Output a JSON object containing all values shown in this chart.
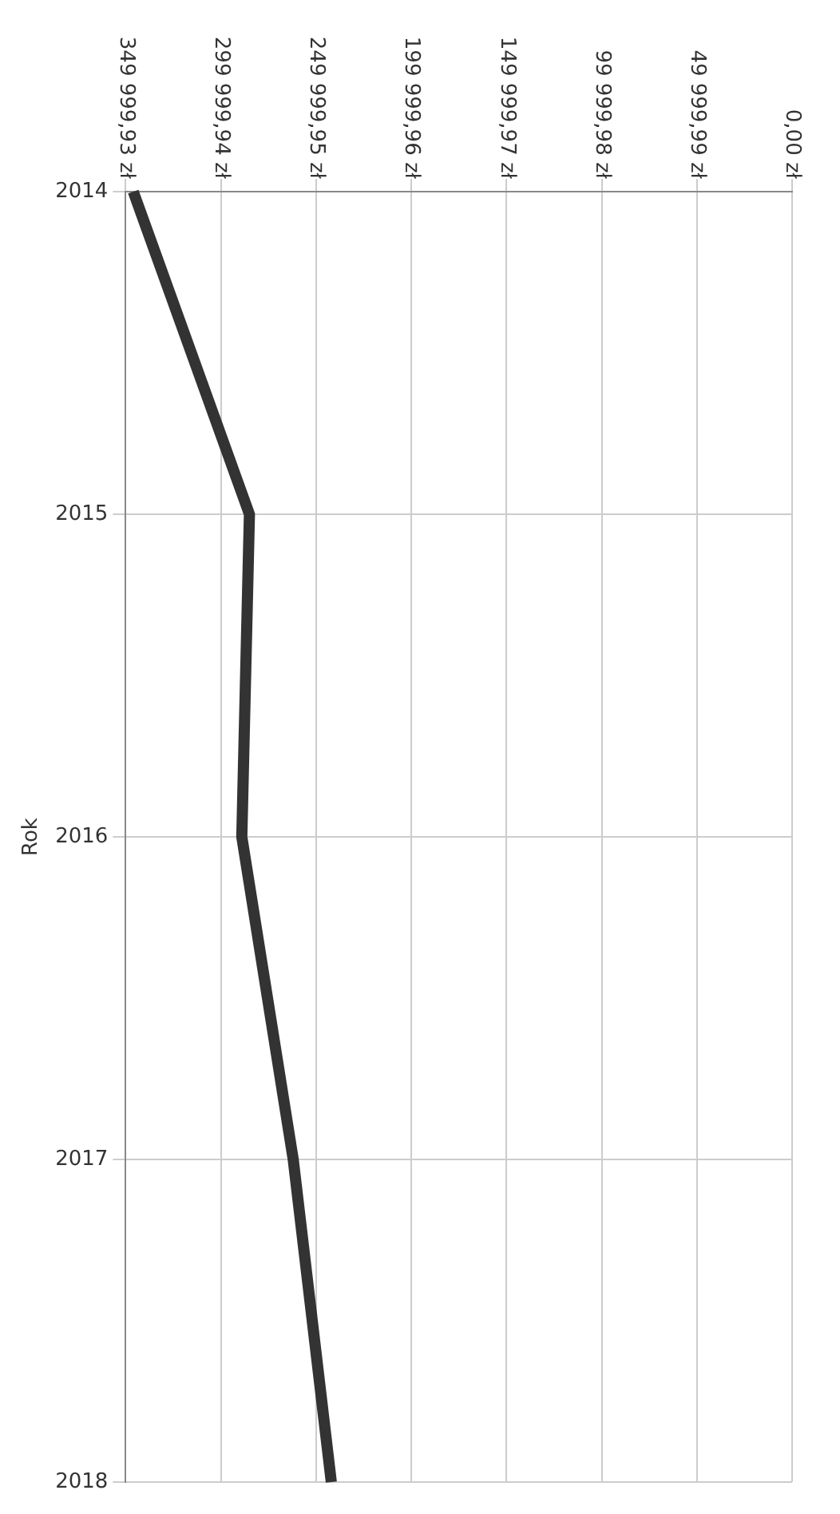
{
  "chart_data": {
    "type": "line",
    "orientation": "horizontal",
    "ylabel": "Rok",
    "categories": [
      "2014",
      "2015",
      "2016",
      "2017",
      "2018"
    ],
    "series": [
      {
        "color": "#333333",
        "values": [
          346000,
          285000,
          289000,
          262000,
          242000
        ]
      }
    ],
    "xlim": [
      349999.93,
      0
    ],
    "xticks": [
      {
        "value": 0,
        "label": "0,00 zł"
      },
      {
        "value": 49999.99,
        "label": "49 999,99 zł"
      },
      {
        "value": 99999.98,
        "label": "99 999,98 zł"
      },
      {
        "value": 149999.97,
        "label": "149 999,97 zł"
      },
      {
        "value": 199999.96,
        "label": "199 999,96 zł"
      },
      {
        "value": 249999.95,
        "label": "249 999,95 zł"
      },
      {
        "value": 299999.94,
        "label": "299 999,94 zł"
      },
      {
        "value": 349999.93,
        "label": "349 999,93 zł"
      }
    ],
    "grid": true,
    "legend": false,
    "marker": "none",
    "line_style": "solid"
  }
}
